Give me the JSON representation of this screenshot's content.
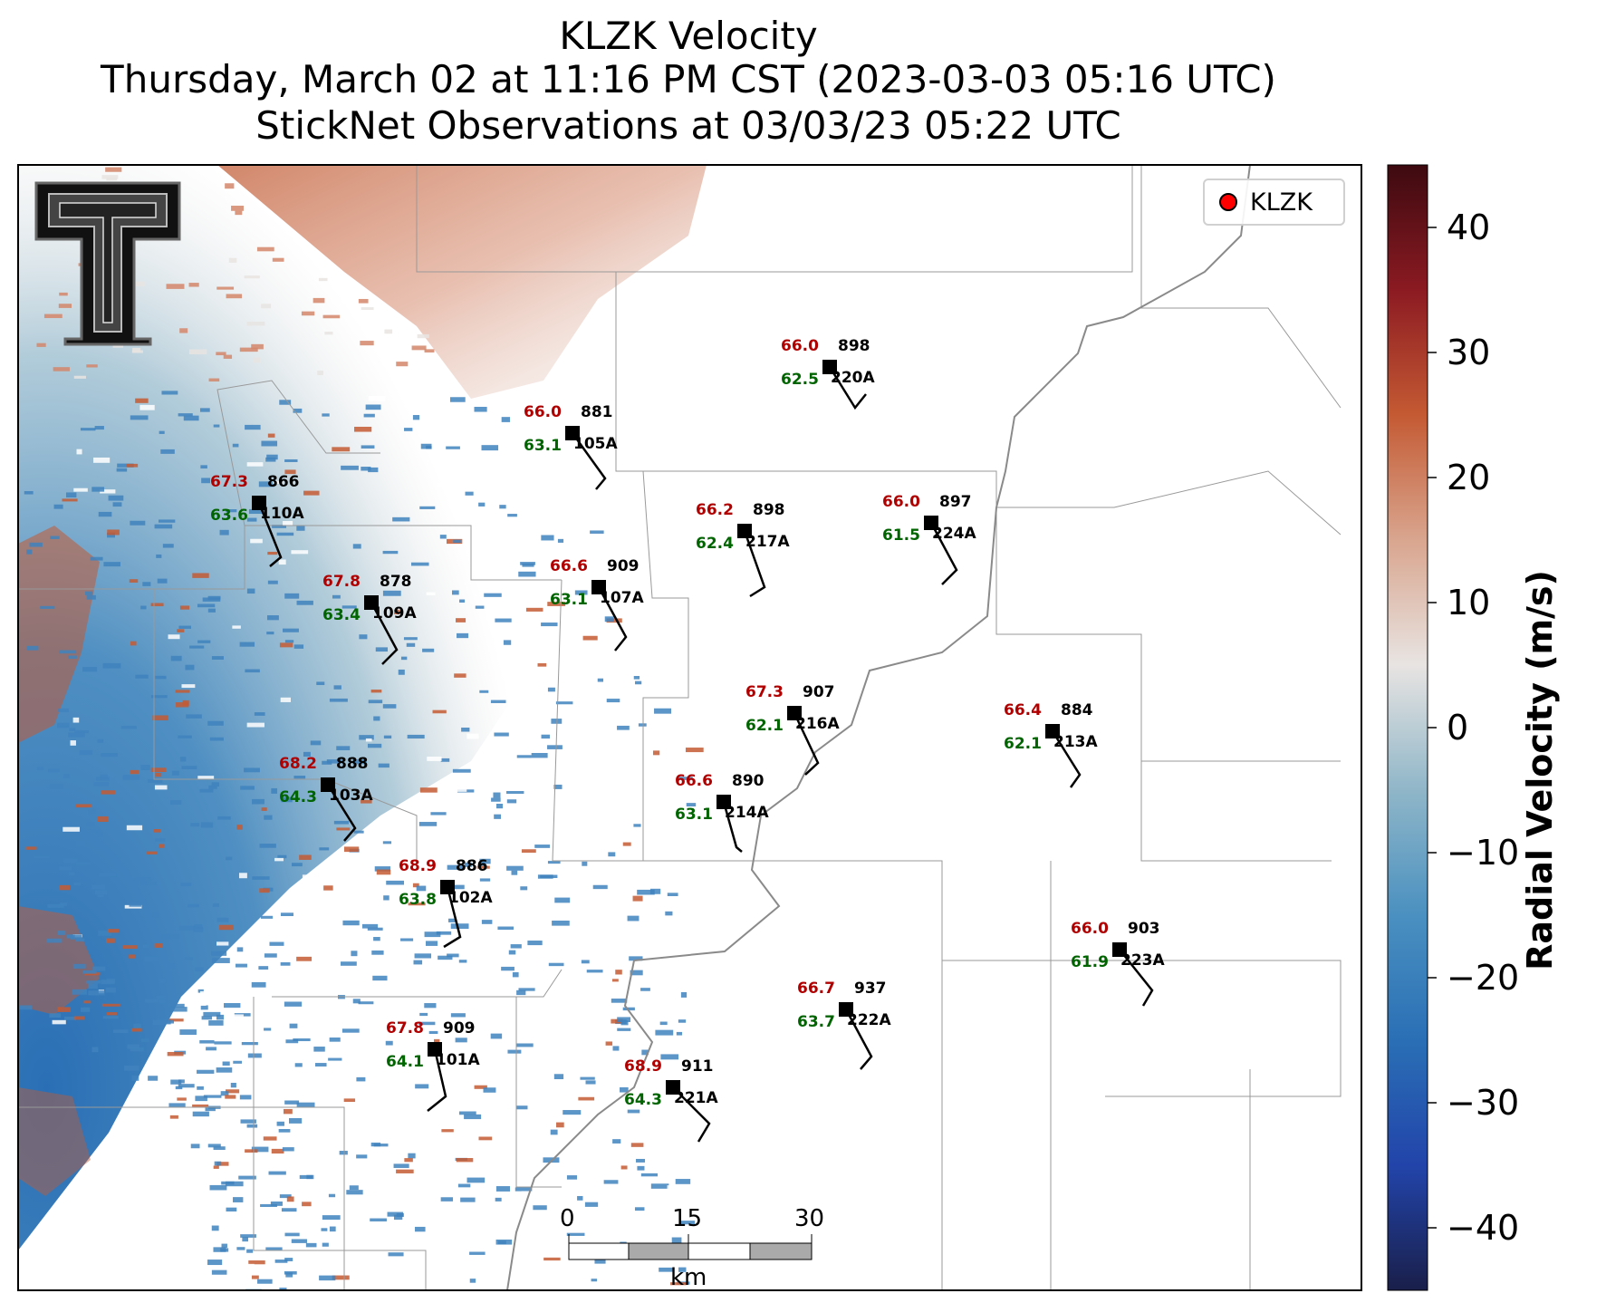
{
  "title": {
    "line1": "KLZK Velocity",
    "line2": "Thursday, March 02 at 11:16 PM CST (2023-03-03 05:16 UTC)",
    "line3": "StickNet Observations at 03/03/23 05:22 UTC"
  },
  "legend": {
    "label": "KLZK",
    "marker_color": "#ff0000"
  },
  "colorbar": {
    "label": "Radial Velocity (m/s)",
    "min": -45,
    "max": 45,
    "ticks": [
      "40",
      "30",
      "20",
      "10",
      "0",
      "−10",
      "−20",
      "−30",
      "−40"
    ],
    "tick_values": [
      40,
      30,
      20,
      10,
      0,
      -10,
      -20,
      -30,
      -40
    ],
    "colors": [
      "#1a1f4a",
      "#2244aa",
      "#2a6fb5",
      "#4a90c0",
      "#8fb6c8",
      "#e8e4e2",
      "#d9a58e",
      "#c45a33",
      "#8b1a22",
      "#3d0a10"
    ]
  },
  "scale_bar": {
    "unit": "km",
    "labels": [
      "0",
      "15",
      "30"
    ]
  },
  "logo": {
    "letter": "T",
    "description": "texas-tech-double-t-logo"
  },
  "stations": [
    {
      "id": "220A",
      "temp": "66.0",
      "dew": "62.5",
      "pressure": "898"
    },
    {
      "id": "105A",
      "temp": "66.0",
      "dew": "63.1",
      "pressure": "881"
    },
    {
      "id": "110A",
      "temp": "67.3",
      "dew": "63.6",
      "pressure": "866"
    },
    {
      "id": "217A",
      "temp": "66.2",
      "dew": "62.4",
      "pressure": "898"
    },
    {
      "id": "224A",
      "temp": "66.0",
      "dew": "61.5",
      "pressure": "897"
    },
    {
      "id": "107A",
      "temp": "66.6",
      "dew": "63.1",
      "pressure": "909"
    },
    {
      "id": "109A",
      "temp": "67.8",
      "dew": "63.4",
      "pressure": "878"
    },
    {
      "id": "216A",
      "temp": "67.3",
      "dew": "62.1",
      "pressure": "907"
    },
    {
      "id": "213A",
      "temp": "66.4",
      "dew": "62.1",
      "pressure": "884"
    },
    {
      "id": "103A",
      "temp": "68.2",
      "dew": "64.3",
      "pressure": "888"
    },
    {
      "id": "214A",
      "temp": "66.6",
      "dew": "63.1",
      "pressure": "890"
    },
    {
      "id": "102A",
      "temp": "68.9",
      "dew": "63.8",
      "pressure": "886"
    },
    {
      "id": "223A",
      "temp": "66.0",
      "dew": "61.9",
      "pressure": "903"
    },
    {
      "id": "222A",
      "temp": "66.7",
      "dew": "63.7",
      "pressure": "937"
    },
    {
      "id": "101A",
      "temp": "67.8",
      "dew": "64.1",
      "pressure": "909"
    },
    {
      "id": "221A",
      "temp": "68.9",
      "dew": "64.3",
      "pressure": "911"
    }
  ],
  "colors": {
    "temp_text": "#b00000",
    "dew_text": "#006400",
    "pressure_text": "#000000"
  }
}
